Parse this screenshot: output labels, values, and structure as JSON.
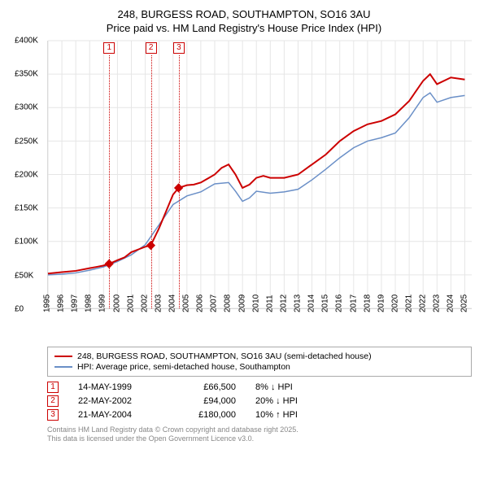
{
  "title_line1": "248, BURGESS ROAD, SOUTHAMPTON, SO16 3AU",
  "title_line2": "Price paid vs. HM Land Registry's House Price Index (HPI)",
  "chart": {
    "type": "line",
    "ylim": [
      0,
      400000
    ],
    "ytick_step": 50000,
    "ytick_labels": [
      "£0",
      "£50K",
      "£100K",
      "£150K",
      "£200K",
      "£250K",
      "£300K",
      "£350K",
      "£400K"
    ],
    "x_years": [
      1995,
      1996,
      1997,
      1998,
      1999,
      2000,
      2001,
      2002,
      2003,
      2004,
      2005,
      2006,
      2007,
      2008,
      2009,
      2010,
      2011,
      2012,
      2013,
      2014,
      2015,
      2016,
      2017,
      2018,
      2019,
      2020,
      2021,
      2022,
      2023,
      2024,
      2025
    ],
    "xlim": [
      1995,
      2025.5
    ],
    "grid_color": "#e6e6e6",
    "series": [
      {
        "name": "price_paid",
        "color": "#cc0000",
        "width": 2,
        "points": [
          [
            1995,
            52000
          ],
          [
            1996,
            54000
          ],
          [
            1997,
            56000
          ],
          [
            1998,
            60000
          ],
          [
            1998.5,
            62000
          ],
          [
            1999,
            64000
          ],
          [
            1999.4,
            66500
          ],
          [
            1999.4,
            66500
          ],
          [
            2000,
            72000
          ],
          [
            2000.5,
            76000
          ],
          [
            2001,
            84000
          ],
          [
            2001.5,
            88000
          ],
          [
            2002,
            92000
          ],
          [
            2002.4,
            94000
          ],
          [
            2002.4,
            94000
          ],
          [
            2003,
            120000
          ],
          [
            2003.5,
            145000
          ],
          [
            2004,
            170000
          ],
          [
            2004.4,
            180000
          ],
          [
            2004.4,
            180000
          ],
          [
            2005,
            184000
          ],
          [
            2005.5,
            185000
          ],
          [
            2006,
            188000
          ],
          [
            2007,
            200000
          ],
          [
            2007.5,
            210000
          ],
          [
            2008,
            215000
          ],
          [
            2008.5,
            200000
          ],
          [
            2009,
            180000
          ],
          [
            2009.5,
            185000
          ],
          [
            2010,
            195000
          ],
          [
            2010.5,
            198000
          ],
          [
            2011,
            195000
          ],
          [
            2012,
            195000
          ],
          [
            2013,
            200000
          ],
          [
            2014,
            215000
          ],
          [
            2015,
            230000
          ],
          [
            2016,
            250000
          ],
          [
            2017,
            265000
          ],
          [
            2018,
            275000
          ],
          [
            2019,
            280000
          ],
          [
            2020,
            290000
          ],
          [
            2021,
            310000
          ],
          [
            2022,
            340000
          ],
          [
            2022.5,
            350000
          ],
          [
            2023,
            335000
          ],
          [
            2024,
            345000
          ],
          [
            2025,
            342000
          ]
        ]
      },
      {
        "name": "hpi",
        "color": "#6a8fc7",
        "width": 1.5,
        "points": [
          [
            1995,
            50000
          ],
          [
            1996,
            51000
          ],
          [
            1997,
            53000
          ],
          [
            1998,
            57000
          ],
          [
            1999,
            62000
          ],
          [
            2000,
            70000
          ],
          [
            2001,
            80000
          ],
          [
            2002,
            95000
          ],
          [
            2003,
            125000
          ],
          [
            2004,
            155000
          ],
          [
            2005,
            168000
          ],
          [
            2006,
            174000
          ],
          [
            2007,
            186000
          ],
          [
            2008,
            188000
          ],
          [
            2008.5,
            175000
          ],
          [
            2009,
            160000
          ],
          [
            2009.5,
            165000
          ],
          [
            2010,
            175000
          ],
          [
            2011,
            172000
          ],
          [
            2012,
            174000
          ],
          [
            2013,
            178000
          ],
          [
            2014,
            192000
          ],
          [
            2015,
            208000
          ],
          [
            2016,
            225000
          ],
          [
            2017,
            240000
          ],
          [
            2018,
            250000
          ],
          [
            2019,
            255000
          ],
          [
            2020,
            262000
          ],
          [
            2021,
            285000
          ],
          [
            2022,
            315000
          ],
          [
            2022.5,
            322000
          ],
          [
            2023,
            308000
          ],
          [
            2024,
            315000
          ],
          [
            2025,
            318000
          ]
        ]
      }
    ],
    "event_markers": [
      {
        "n": "1",
        "year": 1999.4,
        "price": 66500,
        "color": "#cc0000"
      },
      {
        "n": "2",
        "year": 2002.4,
        "price": 94000,
        "color": "#cc0000"
      },
      {
        "n": "3",
        "year": 2004.4,
        "price": 180000,
        "color": "#cc0000"
      }
    ]
  },
  "legend": {
    "series1": {
      "label": "248, BURGESS ROAD, SOUTHAMPTON, SO16 3AU (semi-detached house)",
      "color": "#cc0000"
    },
    "series2": {
      "label": "HPI: Average price, semi-detached house, Southampton",
      "color": "#6a8fc7"
    }
  },
  "events": [
    {
      "n": "1",
      "date": "14-MAY-1999",
      "price": "£66,500",
      "pct": "8% ↓ HPI",
      "color": "#cc0000"
    },
    {
      "n": "2",
      "date": "22-MAY-2002",
      "price": "£94,000",
      "pct": "20% ↓ HPI",
      "color": "#cc0000"
    },
    {
      "n": "3",
      "date": "21-MAY-2004",
      "price": "£180,000",
      "pct": "10% ↑ HPI",
      "color": "#cc0000"
    }
  ],
  "footer_line1": "Contains HM Land Registry data © Crown copyright and database right 2025.",
  "footer_line2": "This data is licensed under the Open Government Licence v3.0."
}
